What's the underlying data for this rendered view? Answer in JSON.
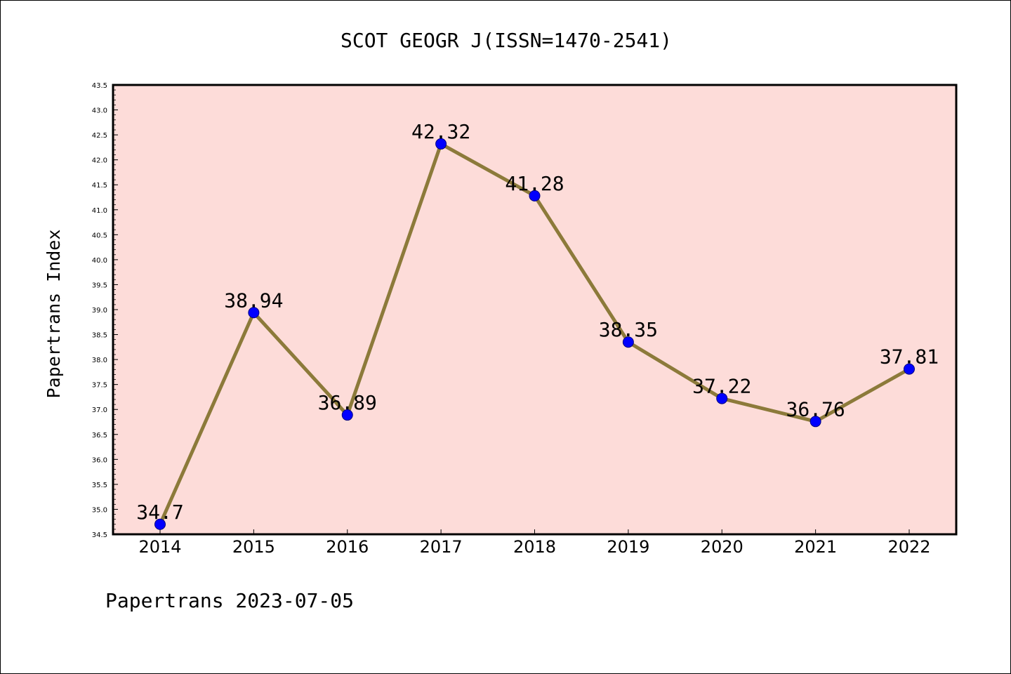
{
  "chart_data": {
    "type": "line",
    "title": "SCOT GEOGR J(ISSN=1470-2541)",
    "ylabel": "Papertrans Index",
    "xlabel": "",
    "categories": [
      "2014",
      "2015",
      "2016",
      "2017",
      "2018",
      "2019",
      "2020",
      "2021",
      "2022"
    ],
    "values": [
      34.7,
      38.94,
      36.89,
      42.32,
      41.28,
      38.35,
      37.22,
      36.76,
      37.81
    ],
    "data_labels": [
      "34.7",
      "38.94",
      "36.89",
      "42.32",
      "41.28",
      "38.35",
      "37.22",
      "36.76",
      "37.81"
    ],
    "ylim": [
      34.5,
      43.5
    ],
    "y_ticks": [
      "34.5",
      "35.0",
      "35.5",
      "36.0",
      "36.5",
      "37.0",
      "37.5",
      "38.0",
      "38.5",
      "39.0",
      "39.5",
      "40.0",
      "40.5",
      "41.0",
      "41.5",
      "42.0",
      "42.5",
      "43.0",
      "43.5"
    ],
    "grid": false,
    "footer": "Papertrans 2023-07-05",
    "colors": {
      "plot_background": "#fddcd9",
      "line": "#8c7a3a",
      "marker": "#0000ff",
      "marker_edge": "#000080",
      "axis": "#000000"
    }
  }
}
